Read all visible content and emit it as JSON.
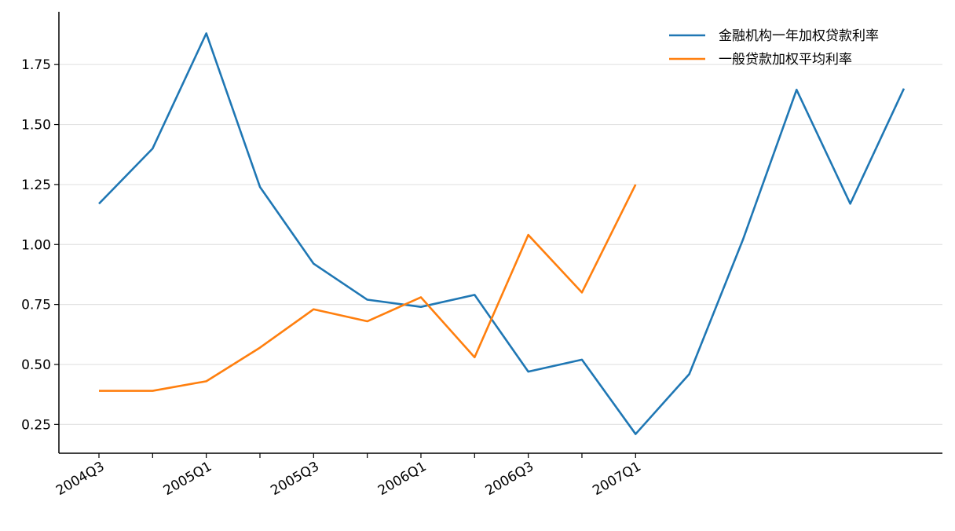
{
  "chart_data": {
    "type": "line",
    "categories": [
      "2004Q3",
      null,
      "2005Q1",
      null,
      "2005Q3",
      null,
      "2006Q1",
      null,
      "2006Q3",
      null,
      "2007Q1",
      null,
      null,
      null,
      null,
      null
    ],
    "xticks": [
      0,
      1,
      2,
      3,
      4,
      5,
      6,
      7,
      8,
      9,
      10
    ],
    "series": [
      {
        "name": "金融机构一年加权贷款利率",
        "color": "#1f77b4",
        "values": [
          1.17,
          1.4,
          1.88,
          1.24,
          0.92,
          0.77,
          0.74,
          0.79,
          0.47,
          0.52,
          0.21,
          0.46,
          1.02,
          1.645,
          1.17,
          1.65
        ]
      },
      {
        "name": "一般贷款加权平均利率",
        "color": "#ff7f0e",
        "values": [
          0.39,
          0.39,
          0.43,
          0.57,
          0.73,
          0.68,
          0.78,
          0.53,
          1.04,
          0.8,
          1.25,
          null,
          null,
          null,
          null,
          null
        ]
      }
    ],
    "ylim": [
      0.13,
      1.97
    ],
    "yticks": [
      {
        "value": 0.25,
        "label": "0.25"
      },
      {
        "value": 0.5,
        "label": "0.50"
      },
      {
        "value": 0.75,
        "label": "0.75"
      },
      {
        "value": 1.0,
        "label": "1.00"
      },
      {
        "value": 1.25,
        "label": "1.25"
      },
      {
        "value": 1.5,
        "label": "1.50"
      },
      {
        "value": 1.75,
        "label": "1.75"
      }
    ],
    "grid": true,
    "legend": "upper-right"
  }
}
